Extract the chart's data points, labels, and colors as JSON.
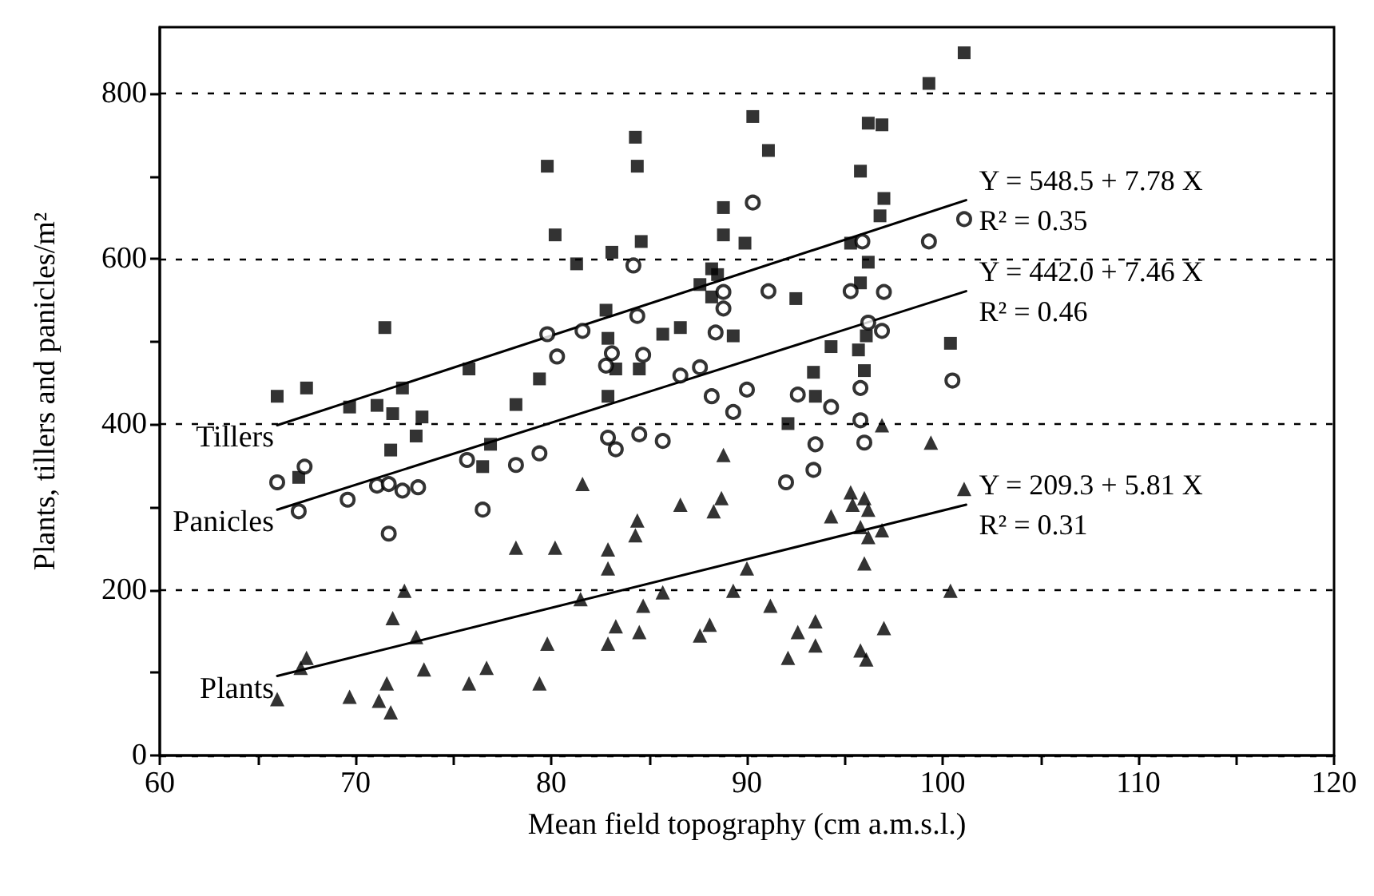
{
  "chart_data": {
    "type": "scatter",
    "xlabel": "Mean field topography (cm a.m.s.l.)",
    "ylabel": "Plants, tillers and panicles/m²",
    "xlim": [
      60,
      120
    ],
    "ylim": [
      0,
      880
    ],
    "xticks": [
      60,
      {
        "value": 65,
        "label": null
      },
      70,
      {
        "value": 75,
        "label": null
      },
      80,
      {
        "value": 85,
        "label": null
      },
      90,
      {
        "value": 95,
        "label": null
      },
      100,
      {
        "value": 105,
        "label": null
      },
      110,
      {
        "value": 115,
        "label": null
      },
      120
    ],
    "yticks": [
      0,
      {
        "value": 100,
        "label": null
      },
      200,
      {
        "value": 300,
        "label": null
      },
      400,
      {
        "value": 500,
        "label": null
      },
      600,
      {
        "value": 700,
        "label": null
      },
      800
    ],
    "grid": "y",
    "series": [
      {
        "name": "Tillers",
        "marker": "square",
        "color": "#000000",
        "x": [
          66.0,
          67.5,
          67.1,
          69.7,
          71.1,
          71.9,
          71.5,
          72.4,
          73.1,
          73.4,
          71.8,
          75.8,
          76.9,
          76.5,
          78.2,
          79.4,
          79.8,
          80.2,
          81.3,
          82.8,
          82.9,
          83.1,
          82.9,
          83.3,
          84.3,
          84.4,
          84.6,
          84.5,
          85.7,
          86.6,
          87.6,
          88.2,
          88.2,
          88.5,
          88.8,
          88.8,
          89.3,
          89.9,
          90.3,
          91.1,
          92.5,
          92.1,
          93.4,
          93.5,
          94.3,
          95.3,
          95.7,
          95.8,
          95.8,
          96.0,
          96.1,
          96.2,
          96.2,
          96.9,
          96.8,
          97.0,
          99.3,
          101.1,
          100.4
        ],
        "values": [
          434,
          444,
          336,
          421,
          423,
          413,
          517,
          444,
          386,
          409,
          369,
          467,
          376,
          349,
          424,
          455,
          712,
          629,
          594,
          538,
          504,
          608,
          434,
          467,
          747,
          712,
          621,
          467,
          509,
          517,
          569,
          554,
          588,
          581,
          662,
          629,
          507,
          619,
          772,
          731,
          552,
          401,
          463,
          434,
          494,
          619,
          490,
          706,
          571,
          465,
          507,
          596,
          764,
          762,
          652,
          673,
          812,
          849,
          498
        ]
      },
      {
        "name": "Panicles",
        "marker": "circle",
        "color": "#000000",
        "x": [
          66.0,
          67.4,
          67.1,
          69.6,
          71.1,
          71.7,
          71.7,
          72.4,
          73.2,
          75.7,
          76.5,
          78.2,
          79.4,
          79.8,
          80.3,
          81.6,
          82.8,
          83.1,
          82.9,
          83.3,
          84.2,
          84.4,
          84.5,
          84.7,
          85.7,
          86.6,
          87.6,
          88.2,
          88.4,
          88.8,
          88.8,
          89.3,
          90.0,
          90.3,
          91.1,
          92.0,
          92.6,
          93.4,
          93.5,
          94.3,
          95.3,
          95.8,
          95.8,
          95.9,
          96.0,
          96.2,
          96.9,
          97.0,
          99.3,
          100.5,
          101.1
        ],
        "values": [
          330,
          349,
          295,
          309,
          326,
          328,
          268,
          320,
          324,
          357,
          297,
          351,
          365,
          509,
          482,
          513,
          471,
          486,
          384,
          370,
          592,
          531,
          388,
          484,
          380,
          459,
          469,
          434,
          511,
          560,
          540,
          415,
          442,
          668,
          561,
          330,
          436,
          345,
          376,
          421,
          561,
          405,
          444,
          621,
          378,
          523,
          513,
          560,
          621,
          453,
          648
        ]
      },
      {
        "name": "Plants",
        "marker": "triangle",
        "color": "#000000",
        "x": [
          78.2,
          80.2,
          72.5,
          71.9,
          73.1,
          79.8,
          67.5,
          67.2,
          73.5,
          71.6,
          75.8,
          76.7,
          79.4,
          66.0,
          69.7,
          71.2,
          71.8,
          88.8,
          99.4,
          96.9,
          81.6,
          86.6,
          88.7,
          88.3,
          95.3,
          95.4,
          96.0,
          96.2,
          94.3,
          84.4,
          84.3,
          82.9,
          82.9,
          95.8,
          96.2,
          96.9,
          90.0,
          96.0,
          81.5,
          84.7,
          85.7,
          89.3,
          91.2,
          83.3,
          84.5,
          82.9,
          87.6,
          88.1,
          92.6,
          93.5,
          97.0,
          92.1,
          93.5,
          95.8,
          96.1,
          101.1,
          100.4
        ],
        "values": [
          251,
          251,
          199,
          166,
          143,
          135,
          118,
          106,
          104,
          87,
          87,
          106,
          87,
          68,
          71,
          66,
          52,
          363,
          378,
          399,
          328,
          303,
          311,
          295,
          318,
          303,
          311,
          297,
          289,
          284,
          266,
          249,
          226,
          276,
          264,
          272,
          226,
          232,
          189,
          181,
          197,
          199,
          181,
          156,
          149,
          135,
          145,
          158,
          149,
          162,
          154,
          118,
          133,
          127,
          116,
          322,
          199
        ]
      },
      {
        "type": "line",
        "color": "#000000",
        "x": [
          66.0,
          101.2
        ],
        "values": [
          399,
          671
        ]
      },
      {
        "type": "line",
        "color": "#000000",
        "x": [
          66.0,
          101.2
        ],
        "values": [
          297,
          561
        ]
      },
      {
        "type": "line",
        "color": "#000000",
        "x": [
          66.0,
          101.2
        ],
        "values": [
          96,
          303
        ]
      }
    ],
    "annotations": [
      "Y = 548.5 + 7.78 X\nR² = 0.35",
      "Y = 442.0 + 7.46 X\nR² = 0.46",
      "Y = 209.3 + 5.81 X\nR² = 0.31"
    ]
  }
}
